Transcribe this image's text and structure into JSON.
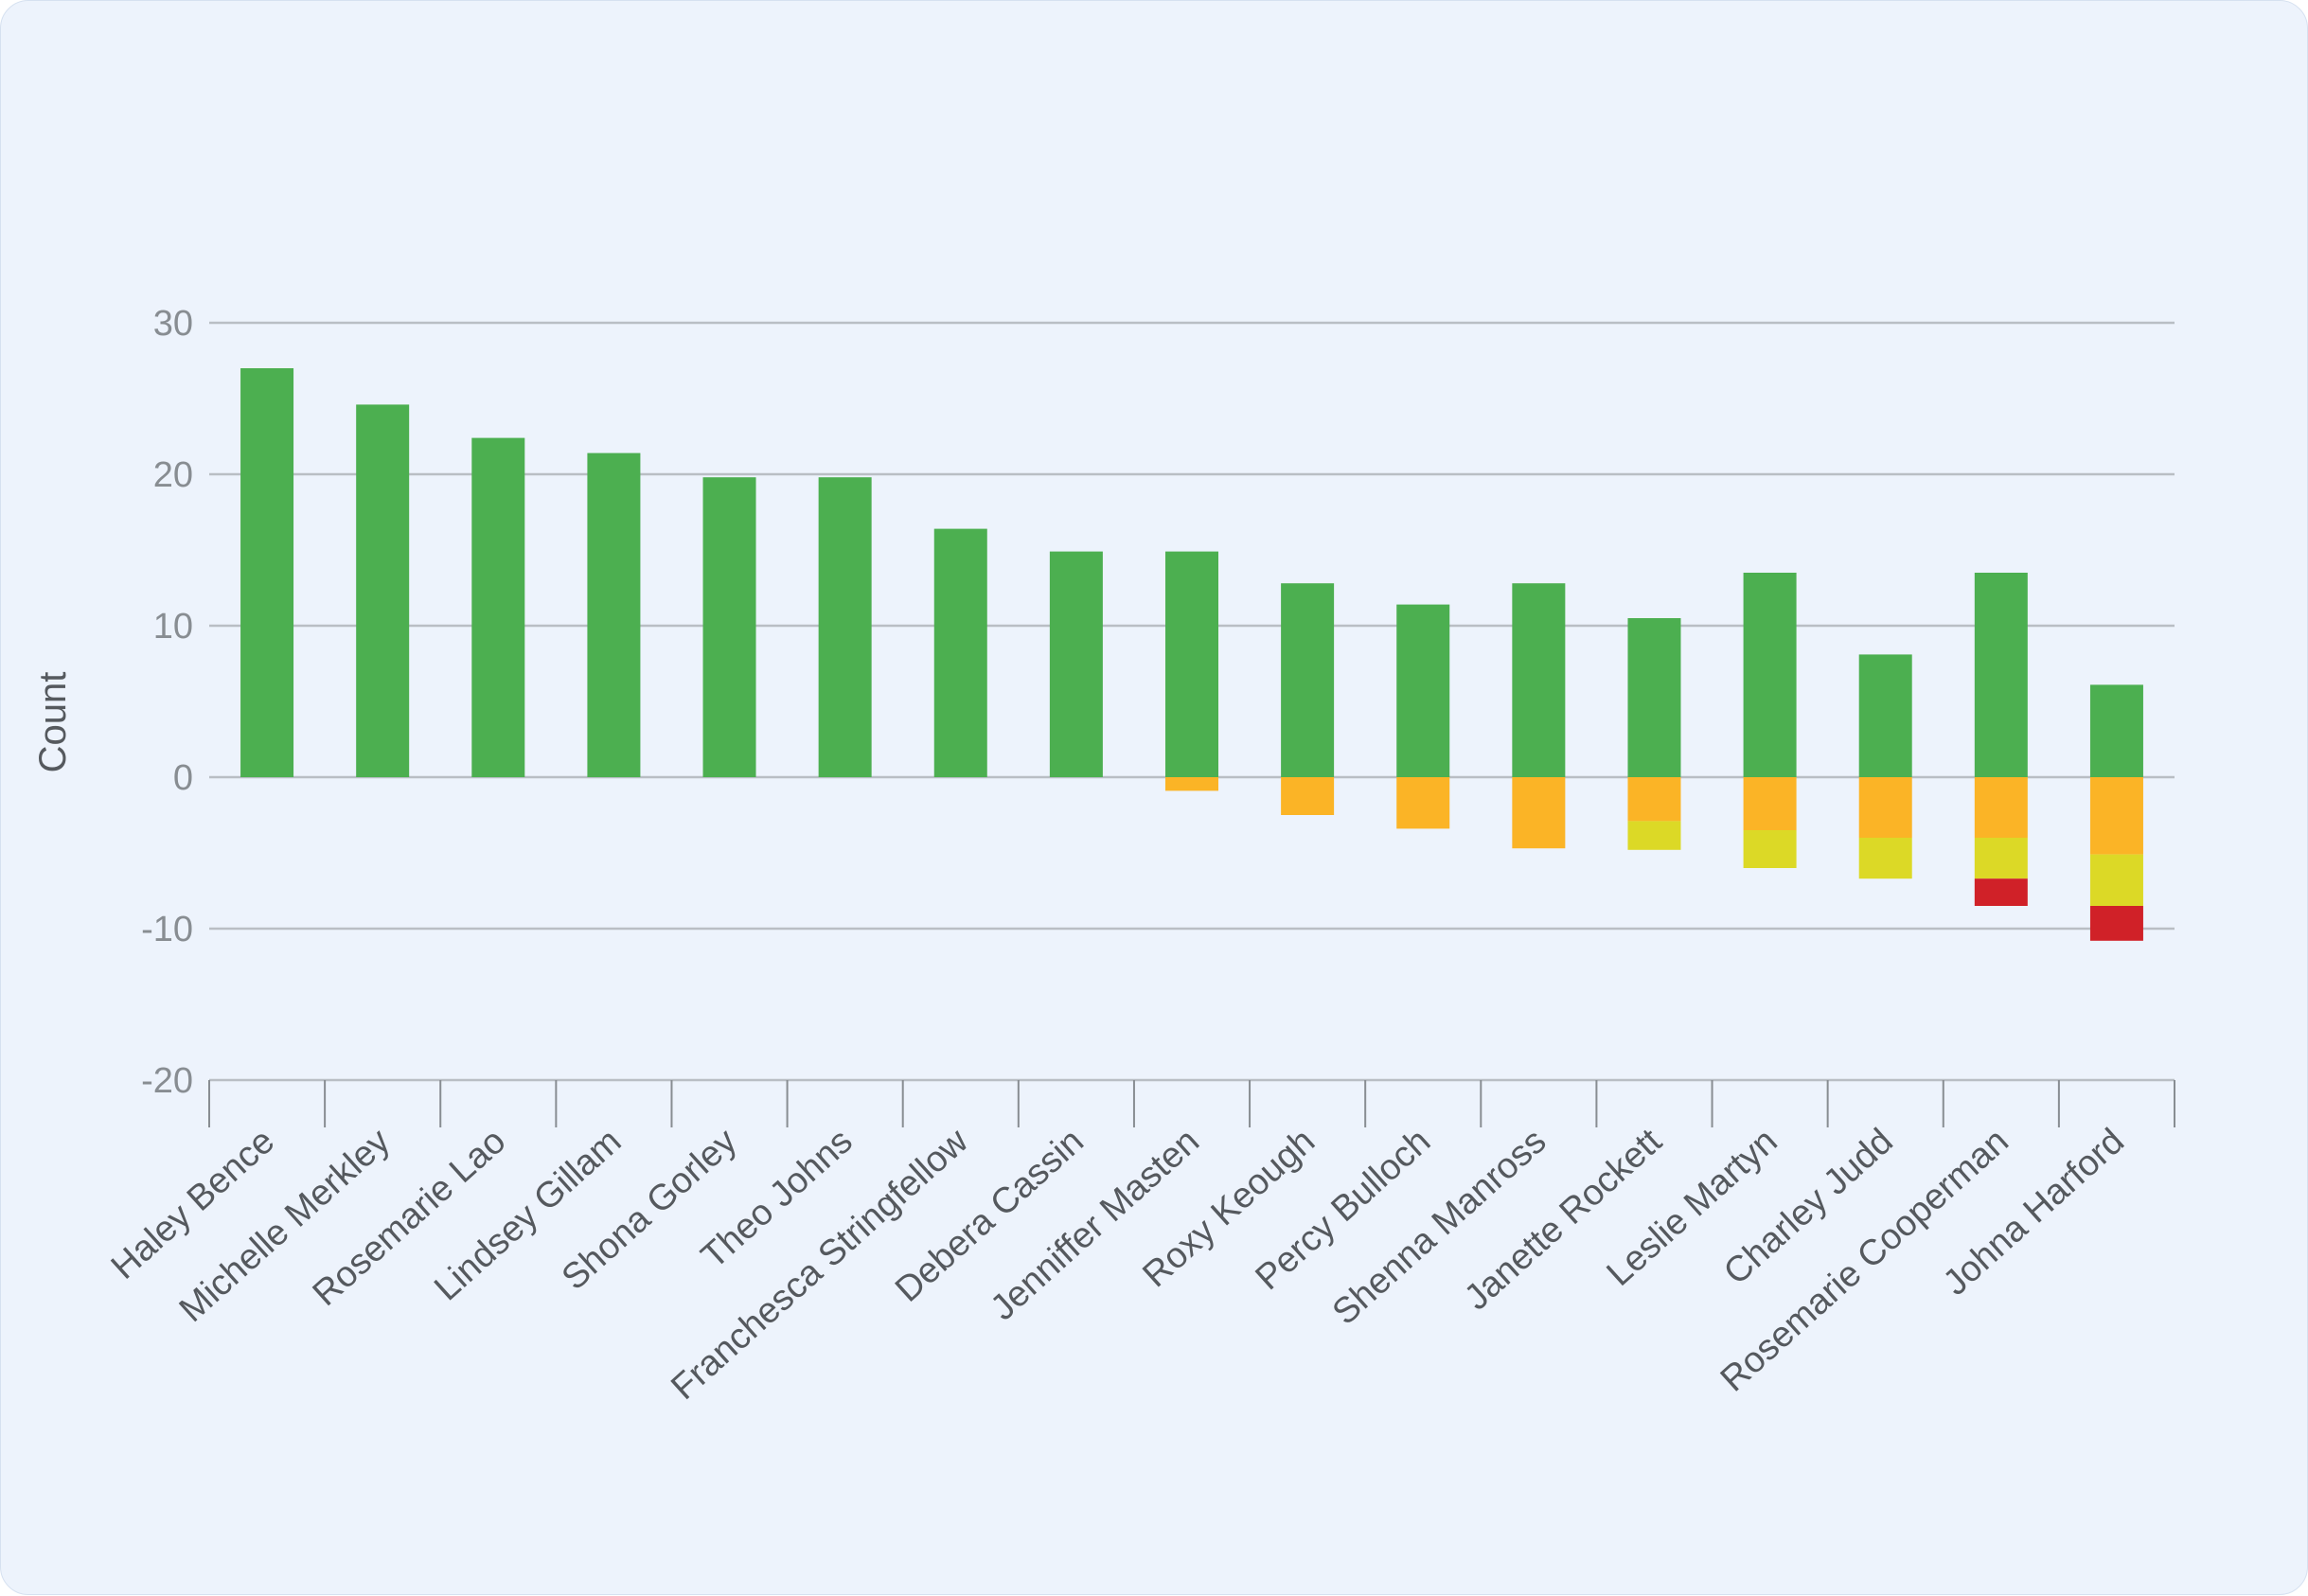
{
  "chart_data": {
    "type": "bar",
    "stacked": true,
    "ylabel": "Count",
    "xlabel": "",
    "ylim": [
      -20,
      30
    ],
    "yticks": [
      -20,
      -10,
      0,
      10,
      20,
      30
    ],
    "grid": true,
    "categories": [
      "Haley Bence",
      "Michelle Merkley",
      "Rosemarie Lao",
      "Lindsey Gillam",
      "Shona Gorley",
      "Theo Johns",
      "Franchesca Stringfellow",
      "Debera Cassin",
      "Jenniffer Masten",
      "Roxy Keough",
      "Percy Bulloch",
      "Shenna Manross",
      "Janette Rockett",
      "Leslie Martyn",
      "Charley Judd",
      "Rosemarie Cooperman",
      "Johna Harford"
    ],
    "series": [
      {
        "color": "#4caf50",
        "values": [
          27,
          24.6,
          22.4,
          21.4,
          19.8,
          19.8,
          16.4,
          14.9,
          14.9,
          12.8,
          11.4,
          12.8,
          10.5,
          13.5,
          8.1,
          13.5,
          6.1
        ]
      },
      {
        "color": "#fbb426",
        "values": [
          0,
          0,
          0,
          0,
          0,
          0,
          0,
          0,
          -0.9,
          -2.5,
          -3.4,
          -4.7,
          -2.9,
          -3.5,
          -4.0,
          -4.0,
          -5.1
        ]
      },
      {
        "color": "#dcd926",
        "values": [
          0,
          0,
          0,
          0,
          0,
          0,
          0,
          0,
          0,
          0,
          0,
          0,
          -1.9,
          -2.5,
          -2.7,
          -2.7,
          -3.4
        ]
      },
      {
        "color": "#d02128",
        "values": [
          0,
          0,
          0,
          0,
          0,
          0,
          0,
          0,
          0,
          0,
          0,
          0,
          0,
          0,
          0,
          -1.8,
          -2.3
        ]
      }
    ]
  }
}
